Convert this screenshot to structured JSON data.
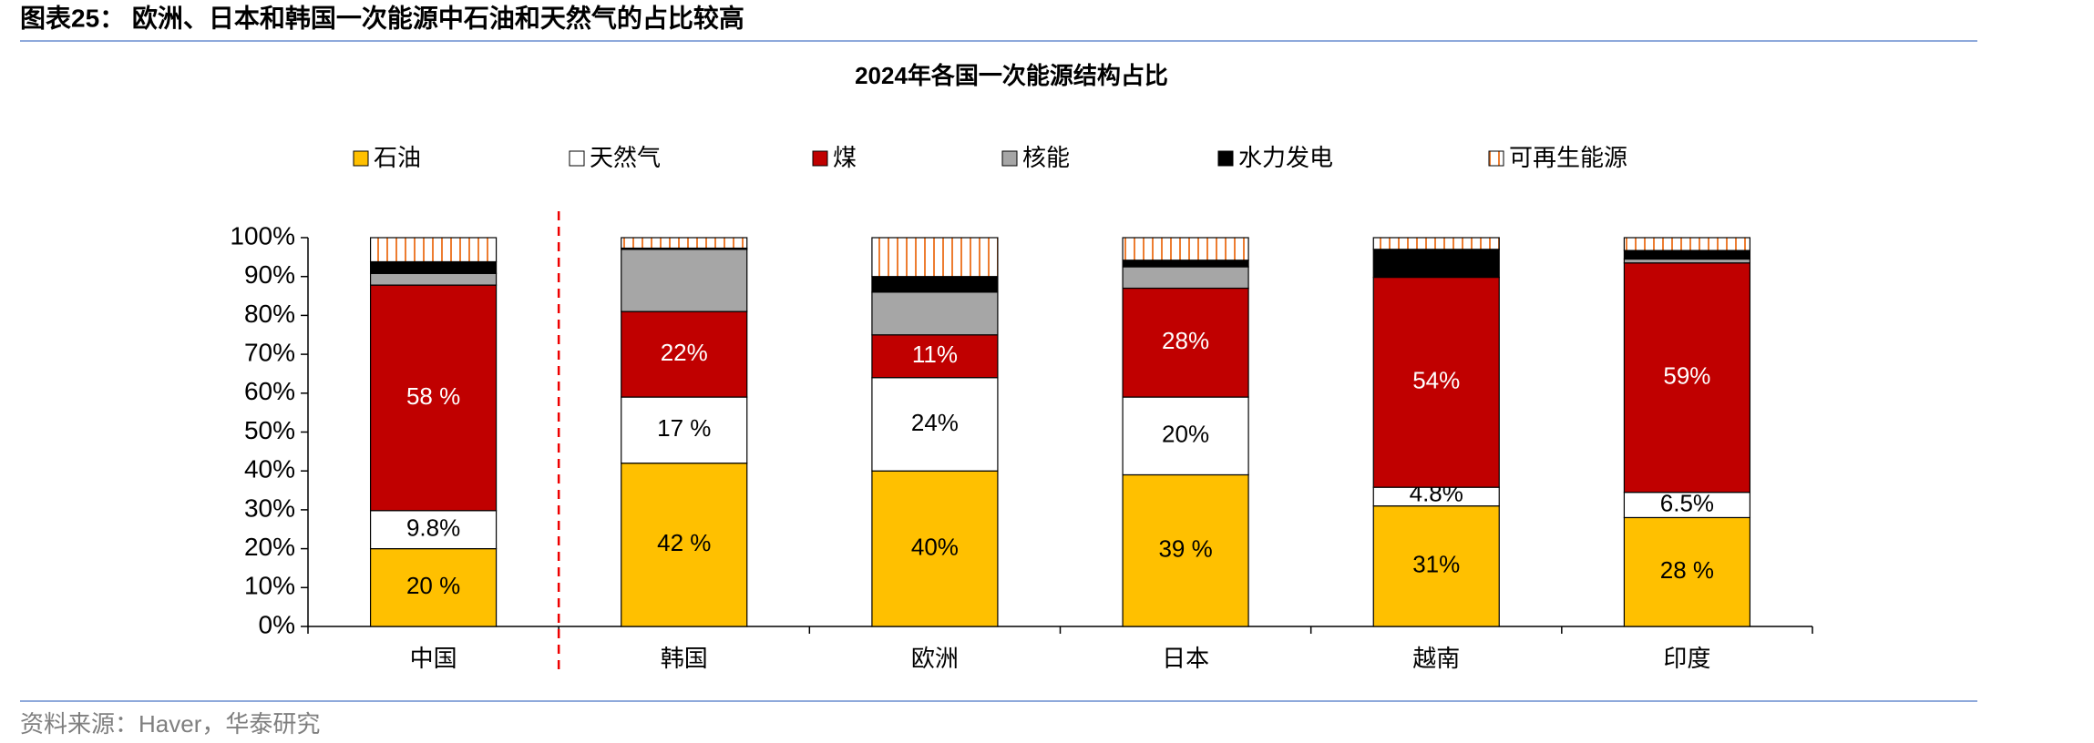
{
  "header": {
    "title": "图表25： 欧洲、日本和韩国一次能源中石油和天然气的占比较高"
  },
  "chart_data": {
    "type": "stacked-bar",
    "title": "2024年各国一次能源结构占比",
    "categories": [
      "中国",
      "韩国",
      "欧洲",
      "日本",
      "越南",
      "印度"
    ],
    "series": [
      {
        "name": "石油",
        "color": "#ffc000",
        "values": [
          20,
          42,
          40,
          39,
          31,
          28
        ],
        "value_labels": [
          "20 %",
          "42 %",
          "40%",
          "39 %",
          "31%",
          "28 %"
        ]
      },
      {
        "name": "天然气",
        "color": "#ffffff",
        "values": [
          9.8,
          17,
          24,
          20,
          4.8,
          6.5
        ],
        "value_labels": [
          "9.8%",
          "17 %",
          "24%",
          "20%",
          "4.8%",
          "6.5%"
        ]
      },
      {
        "name": "煤",
        "color": "#c00000",
        "values": [
          58,
          22,
          11,
          28,
          54,
          59
        ],
        "value_labels": [
          "58 %",
          "22%",
          "11%",
          "28%",
          "54%",
          "59%"
        ]
      },
      {
        "name": "核能",
        "color": "#a6a6a6",
        "values": [
          3,
          16,
          11,
          5.5,
          0,
          1
        ]
      },
      {
        "name": "水力发电",
        "color": "#000000",
        "values": [
          3,
          0.3,
          4,
          1.7,
          7.2,
          2.2
        ]
      },
      {
        "name": "可再生能源",
        "color": "#ed7d31",
        "pattern": "vertical-stripes",
        "values": [
          6.2,
          2.7,
          10,
          5.8,
          3,
          3.3
        ]
      }
    ],
    "ylim": [
      0,
      100
    ],
    "yticks": [
      {
        "value": 0,
        "label": "0%"
      },
      {
        "value": 10,
        "label": "10%"
      },
      {
        "value": 20,
        "label": "20%"
      },
      {
        "value": 30,
        "label": "30%"
      },
      {
        "value": 40,
        "label": "40%"
      },
      {
        "value": 50,
        "label": "50%"
      },
      {
        "value": 60,
        "label": "60%"
      },
      {
        "value": 70,
        "label": "70%"
      },
      {
        "value": 80,
        "label": "80%"
      },
      {
        "value": 90,
        "label": "90%"
      },
      {
        "value": 100,
        "label": "100%"
      }
    ],
    "grid": false,
    "legend": "top"
  },
  "footer": {
    "source": "资料来源：Haver，华泰研究"
  }
}
